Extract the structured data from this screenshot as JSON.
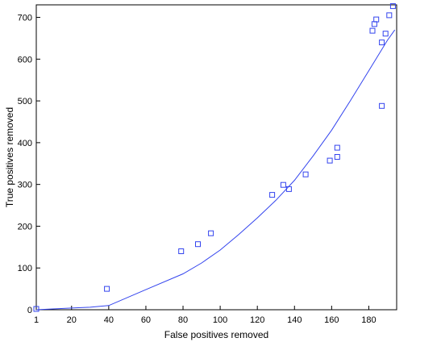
{
  "chart_data": {
    "type": "scatter",
    "title": "",
    "xlabel": "False positives removed",
    "ylabel": "True positives removed",
    "xlim": [
      1,
      195
    ],
    "ylim": [
      0,
      730
    ],
    "xticks": [
      1,
      20,
      40,
      60,
      80,
      100,
      120,
      140,
      160,
      180
    ],
    "yticks": [
      0,
      100,
      200,
      300,
      400,
      500,
      600,
      700
    ],
    "grid": false,
    "legend": "none",
    "colors": {
      "series": "#3344ee",
      "axis": "#000000"
    },
    "series": [
      {
        "type": "scatter",
        "marker": "square",
        "points": [
          [
            1,
            2
          ],
          [
            39,
            50
          ],
          [
            79,
            140
          ],
          [
            88,
            157
          ],
          [
            95,
            183
          ],
          [
            128,
            275
          ],
          [
            134,
            299
          ],
          [
            137,
            289
          ],
          [
            146,
            324
          ],
          [
            159,
            357
          ],
          [
            163,
            388
          ],
          [
            163,
            366
          ],
          [
            182,
            668
          ],
          [
            183,
            684
          ],
          [
            184,
            695
          ],
          [
            187,
            640
          ],
          [
            187,
            488
          ],
          [
            189,
            661
          ],
          [
            191,
            705
          ],
          [
            193,
            727
          ]
        ]
      },
      {
        "type": "line",
        "points": [
          [
            1,
            0
          ],
          [
            10,
            2
          ],
          [
            20,
            4
          ],
          [
            30,
            6
          ],
          [
            40,
            10
          ],
          [
            60,
            48
          ],
          [
            80,
            86
          ],
          [
            90,
            112
          ],
          [
            100,
            143
          ],
          [
            110,
            180
          ],
          [
            120,
            220
          ],
          [
            130,
            262
          ],
          [
            140,
            310
          ],
          [
            150,
            368
          ],
          [
            160,
            430
          ],
          [
            170,
            500
          ],
          [
            180,
            572
          ],
          [
            190,
            645
          ],
          [
            194,
            670
          ]
        ]
      }
    ]
  }
}
